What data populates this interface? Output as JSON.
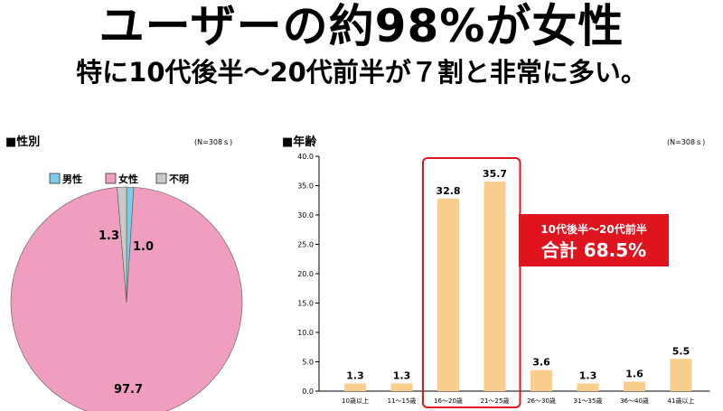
{
  "headline": {
    "title": "ユーザーの約98%が女性",
    "subtitle": "特に10代後半～20代前半が７割と非常に多い。"
  },
  "gender_panel": {
    "title": "■性別",
    "n": "(N=308ｓ)"
  },
  "age_panel": {
    "title": "■年齢",
    "n": "(N=308ｓ)"
  },
  "callout": {
    "line1": "10代後半～20代前半",
    "line2": "合計 68.5%"
  },
  "colors": {
    "male": "#7ecbe8",
    "female": "#f09ec0",
    "unknown": "#c9c9c9",
    "bar": "#f9cd8c",
    "highlight": "#e0141e"
  },
  "chart_data": [
    {
      "type": "pie",
      "title": "",
      "legend": [
        "男性",
        "女性",
        "不明"
      ],
      "values": [
        1.0,
        97.7,
        1.3
      ],
      "labels": [
        "1.0",
        "97.7",
        "1.3"
      ],
      "legend_position": "top"
    },
    {
      "type": "bar",
      "title": "",
      "categories": [
        "10歳以上",
        "11～15歳",
        "16～20歳",
        "21～25歳",
        "26～30歳",
        "31～35歳",
        "36～40歳",
        "41歳以上"
      ],
      "values": [
        1.3,
        1.3,
        32.8,
        35.7,
        3.6,
        1.3,
        1.6,
        5.5
      ],
      "value_labels": [
        "1.3",
        "1.3",
        "32.8",
        "35.7",
        "3.6",
        "1.3",
        "1.6",
        "5.5"
      ],
      "ylim": [
        0,
        40
      ],
      "yticks": [
        "0.0",
        "5.0",
        "10.0",
        "15.0",
        "20.0",
        "25.0",
        "30.0",
        "35.0",
        "40.0"
      ],
      "highlighted_categories": [
        "16～20歳",
        "21～25歳"
      ],
      "grid": false
    }
  ]
}
